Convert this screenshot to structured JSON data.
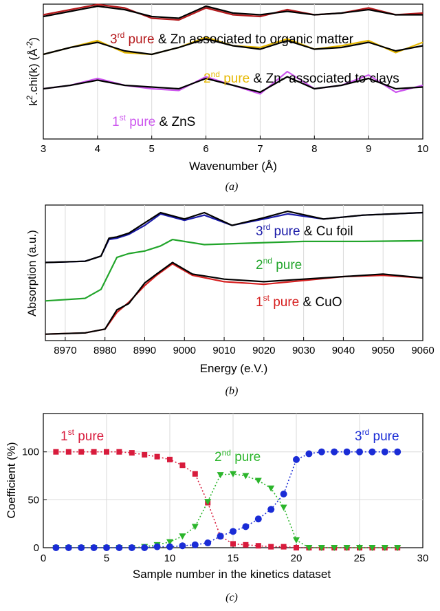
{
  "chart_data": [
    {
      "type": "line",
      "caption": "(a)",
      "xlabel": "Wavenumber (Å)",
      "ylabel_base": "k",
      "ylabel_sup": "2",
      "ylabel_mid": ".chi(k) (Å",
      "ylabel_sup2": "-2",
      "ylabel_end": ")",
      "xlim": [
        3,
        10
      ],
      "xticks": [
        "3",
        "4",
        "5",
        "6",
        "7",
        "8",
        "9",
        "10"
      ],
      "grid": true,
      "series": [
        {
          "name": "3rd pure",
          "color": "#b5191c",
          "offset": 1.6,
          "x": [
            3,
            3.5,
            4,
            4.5,
            5,
            5.5,
            6,
            6.5,
            7,
            7.5,
            8,
            8.5,
            9,
            9.5,
            10
          ],
          "values": [
            0.05,
            0.2,
            0.35,
            0.25,
            -0.05,
            -0.1,
            0.25,
            0.05,
            0.0,
            0.2,
            0.05,
            0.1,
            0.25,
            0.05,
            0.1
          ]
        },
        {
          "name": "Zn associated to organic matter",
          "color": "#000000",
          "offset": 1.6,
          "x": [
            3,
            3.5,
            4,
            4.5,
            5,
            5.5,
            6,
            6.5,
            7,
            7.5,
            8,
            8.5,
            9,
            9.5,
            10
          ],
          "values": [
            0.0,
            0.15,
            0.3,
            0.2,
            0.0,
            -0.05,
            0.3,
            0.1,
            0.05,
            0.15,
            0.05,
            0.1,
            0.2,
            0.05,
            0.05
          ]
        },
        {
          "name": "2nd pure",
          "color": "#e6b800",
          "offset": 0.6,
          "x": [
            3,
            3.5,
            4,
            4.5,
            5,
            5.5,
            6,
            6.5,
            7,
            7.5,
            8,
            8.5,
            9,
            9.5,
            10
          ],
          "values": [
            -0.1,
            0.1,
            0.3,
            -0.05,
            -0.1,
            0.1,
            0.4,
            0.15,
            0.1,
            0.35,
            0.05,
            0.15,
            0.3,
            -0.05,
            0.25
          ]
        },
        {
          "name": "Zn- associated to clays",
          "color": "#000000",
          "offset": 0.6,
          "x": [
            3,
            3.5,
            4,
            4.5,
            5,
            5.5,
            6,
            6.5,
            7,
            7.5,
            8,
            8.5,
            9,
            9.5,
            10
          ],
          "values": [
            -0.1,
            0.1,
            0.25,
            0.0,
            -0.1,
            0.1,
            0.35,
            0.15,
            0.05,
            0.3,
            0.05,
            0.1,
            0.25,
            0.0,
            0.15
          ]
        },
        {
          "name": "1st pure",
          "color": "#cc55ee",
          "offset": -0.5,
          "x": [
            3,
            3.5,
            4,
            4.5,
            5,
            5.5,
            6,
            6.5,
            7,
            7.5,
            8,
            8.5,
            9,
            9.5,
            10
          ],
          "values": [
            0.0,
            0.1,
            0.3,
            0.1,
            0.0,
            -0.05,
            0.35,
            0.1,
            -0.15,
            0.5,
            0.0,
            0.1,
            0.4,
            -0.1,
            0.1
          ]
        },
        {
          "name": "ZnS",
          "color": "#000000",
          "offset": -0.5,
          "x": [
            3,
            3.5,
            4,
            4.5,
            5,
            5.5,
            6,
            6.5,
            7,
            7.5,
            8,
            8.5,
            9,
            9.5,
            10
          ],
          "values": [
            0.0,
            0.1,
            0.25,
            0.1,
            0.05,
            0.0,
            0.3,
            0.1,
            -0.1,
            0.35,
            0.0,
            0.1,
            0.3,
            0.0,
            0.05
          ]
        }
      ],
      "annotations": [
        {
          "num": "3",
          "sup": "rd",
          "pure": " pure",
          "rest": " & Zn associated to organic matter",
          "color": "#b5191c"
        },
        {
          "num": "2",
          "sup": "nd",
          "pure": " pure",
          "rest": " & Zn- associated to clays",
          "color": "#e6b800"
        },
        {
          "num": "1",
          "sup": "st",
          "pure": " pure",
          "rest": " & ZnS",
          "color": "#cc55ee"
        }
      ]
    },
    {
      "type": "line",
      "caption": "(b)",
      "xlabel": "Energy (e.V.)",
      "ylabel": "Absorption (a.u.)",
      "xlim": [
        8965,
        9060
      ],
      "xticks": [
        "8970",
        "8980",
        "8990",
        "9000",
        "9010",
        "9020",
        "9030",
        "9040",
        "9050",
        "9060"
      ],
      "grid": true,
      "series": [
        {
          "name": "3rd pure",
          "color": "#1a1aa8",
          "x": [
            8965,
            8975,
            8979,
            8981,
            8983,
            8986,
            8990,
            8994,
            9000,
            9005,
            9012,
            9020,
            9026,
            9035,
            9045,
            9060
          ],
          "values": [
            1.22,
            1.24,
            1.32,
            1.58,
            1.6,
            1.66,
            1.8,
            1.98,
            1.88,
            1.96,
            1.8,
            1.9,
            1.98,
            1.9,
            1.96,
            2.0
          ]
        },
        {
          "name": "Cu foil",
          "color": "#000000",
          "x": [
            8965,
            8975,
            8979,
            8981,
            8983,
            8986,
            8990,
            8994,
            9000,
            9005,
            9012,
            9020,
            9026,
            9035,
            9045,
            9060
          ],
          "values": [
            1.22,
            1.24,
            1.32,
            1.6,
            1.62,
            1.68,
            1.84,
            2.0,
            1.9,
            2.0,
            1.8,
            1.92,
            2.02,
            1.9,
            1.96,
            2.0
          ]
        },
        {
          "name": "2nd pure",
          "color": "#22a52b",
          "x": [
            8965,
            8975,
            8979,
            8981,
            8983,
            8986,
            8990,
            8994,
            8997,
            9005,
            9015,
            9030,
            9045,
            9060
          ],
          "values": [
            0.62,
            0.66,
            0.8,
            1.05,
            1.3,
            1.36,
            1.4,
            1.48,
            1.58,
            1.5,
            1.52,
            1.55,
            1.55,
            1.56
          ]
        },
        {
          "name": "1st pure",
          "color": "#d62020",
          "x": [
            8965,
            8975,
            8980,
            8983,
            8986,
            8990,
            8993,
            8997,
            9002,
            9010,
            9020,
            9030,
            9040,
            9050,
            9060
          ],
          "values": [
            0.1,
            0.12,
            0.18,
            0.44,
            0.6,
            0.86,
            1.02,
            1.2,
            1.02,
            0.92,
            0.88,
            0.94,
            1.0,
            1.02,
            0.98
          ]
        },
        {
          "name": "CuO",
          "color": "#000000",
          "x": [
            8965,
            8975,
            8980,
            8983,
            8986,
            8990,
            8993,
            8997,
            9002,
            9010,
            9020,
            9030,
            9040,
            9050,
            9060
          ],
          "values": [
            0.1,
            0.12,
            0.18,
            0.48,
            0.58,
            0.9,
            1.04,
            1.22,
            1.04,
            0.96,
            0.92,
            0.96,
            1.0,
            1.04,
            0.98
          ]
        }
      ],
      "annotations": [
        {
          "num": "3",
          "sup": "rd",
          "pure": " pure",
          "rest": " & Cu foil",
          "color": "#1a1aa8"
        },
        {
          "num": "2",
          "sup": "nd",
          "pure": " pure",
          "rest": "",
          "color": "#22a52b"
        },
        {
          "num": "1",
          "sup": "st",
          "pure": " pure",
          "rest": " & CuO",
          "color": "#d62020"
        }
      ]
    },
    {
      "type": "line",
      "caption": "(c)",
      "xlabel": "Sample number in the kinetics dataset",
      "ylabel": "Coefficient (%)",
      "xlim": [
        0,
        30
      ],
      "ylim": [
        0,
        140
      ],
      "xticks": [
        "0",
        "5",
        "10",
        "15",
        "20",
        "25",
        "30"
      ],
      "yticks": [
        "0",
        "50",
        "100"
      ],
      "ytick_values": [
        0,
        50,
        100
      ],
      "grid": true,
      "x": [
        1,
        2,
        3,
        4,
        5,
        6,
        7,
        8,
        9,
        10,
        11,
        12,
        13,
        14,
        15,
        16,
        17,
        18,
        19,
        20,
        21,
        22,
        23,
        24,
        25,
        26,
        27,
        28
      ],
      "series": [
        {
          "name": "1st pure",
          "color": "#d81b3c",
          "marker": "square",
          "values": [
            100,
            100,
            100,
            100,
            100,
            100,
            99,
            97,
            95,
            92,
            86,
            77,
            47,
            12,
            4,
            3,
            2,
            1,
            1,
            0,
            0,
            0,
            0,
            0,
            0,
            0,
            0,
            0
          ]
        },
        {
          "name": "2nd pure",
          "color": "#2bb52b",
          "marker": "triangle",
          "values": [
            0,
            0,
            0,
            0,
            0,
            0,
            0,
            1,
            3,
            6,
            12,
            22,
            48,
            76,
            77,
            75,
            70,
            62,
            42,
            8,
            0,
            0,
            0,
            0,
            0,
            0,
            0,
            0
          ]
        },
        {
          "name": "3rd pure",
          "color": "#1a2cd6",
          "marker": "circle",
          "values": [
            0,
            0,
            0,
            0,
            0,
            0,
            0,
            0,
            1,
            1,
            2,
            3,
            5,
            12,
            17,
            22,
            30,
            40,
            56,
            92,
            98,
            100,
            100,
            100,
            100,
            100,
            100,
            100
          ]
        }
      ],
      "annotations": [
        {
          "num": "1",
          "sup": "st",
          "pure": " pure",
          "color": "#d81b3c"
        },
        {
          "num": "2",
          "sup": "nd",
          "pure": " pure",
          "color": "#2bb52b"
        },
        {
          "num": "3",
          "sup": "rd",
          "pure": " pure",
          "color": "#1a2cd6"
        }
      ]
    }
  ]
}
